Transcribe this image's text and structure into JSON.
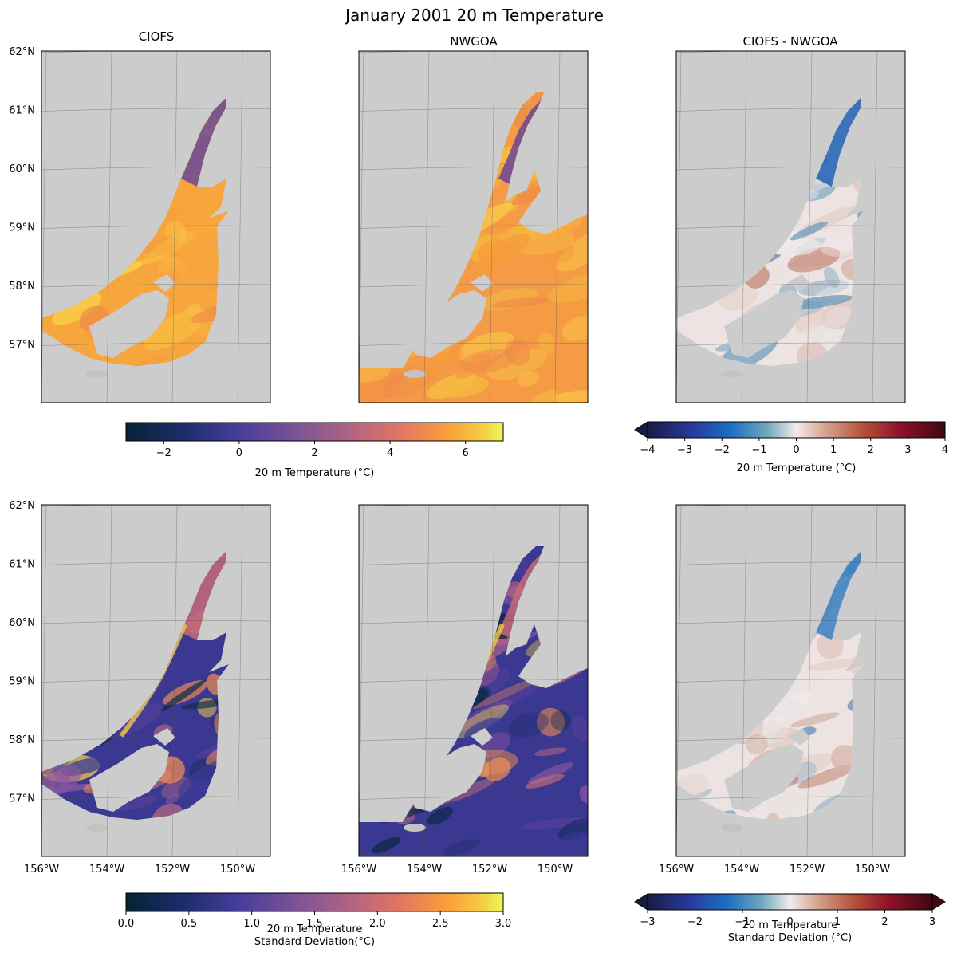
{
  "chart_data": {
    "type": "heatmap",
    "title": "January 2001 20 m Temperature",
    "column_titles": [
      "CIOFS",
      "NWGOA",
      "CIOFS - NWGOA"
    ],
    "lat_ticks": [
      62,
      61,
      60,
      59,
      58,
      57
    ],
    "lat_tick_labels": [
      "62°N",
      "61°N",
      "60°N",
      "59°N",
      "58°N",
      "57°N"
    ],
    "lon_ticks": [
      -156,
      -154,
      -152,
      -150
    ],
    "lon_tick_labels": [
      "156°W",
      "154°W",
      "152°W",
      "150°W"
    ],
    "lat_range": [
      56,
      62
    ],
    "lon_range": [
      -156,
      -149
    ],
    "land_color": "#cccccc",
    "panels": [
      {
        "row": 0,
        "col": 0,
        "model": "CIOFS",
        "field": "20 m Temperature (°C)",
        "colormap": "thermal",
        "domain": "fan"
      },
      {
        "row": 0,
        "col": 1,
        "model": "NWGOA",
        "field": "20 m Temperature (°C)",
        "colormap": "thermal",
        "domain": "full"
      },
      {
        "row": 0,
        "col": 2,
        "model": "CIOFS - NWGOA",
        "field": "20 m Temperature (°C)",
        "colormap": "balance",
        "domain": "fan"
      },
      {
        "row": 1,
        "col": 0,
        "model": "CIOFS",
        "field": "20 m Temperature Standard Deviation (°C)",
        "colormap": "thermal",
        "domain": "fan"
      },
      {
        "row": 1,
        "col": 1,
        "model": "NWGOA",
        "field": "20 m Temperature Standard Deviation (°C)",
        "colormap": "thermal",
        "domain": "full"
      },
      {
        "row": 1,
        "col": 2,
        "model": "CIOFS - NWGOA",
        "field": "20 m Temperature Standard Deviation (°C)",
        "colormap": "balance",
        "domain": "fan"
      }
    ],
    "colorbars": [
      {
        "id": "temp",
        "label": "20 m Temperature (°C)",
        "vmin": -3,
        "vmax": 7,
        "ticks": [
          -2,
          0,
          2,
          4,
          6
        ],
        "tick_labels": [
          "−2",
          "0",
          "2",
          "4",
          "6"
        ],
        "extend": "neither",
        "colormap": "thermal"
      },
      {
        "id": "temp-diff",
        "label": "20 m Temperature (°C)",
        "vmin": -4,
        "vmax": 4,
        "ticks": [
          -4,
          -3,
          -2,
          -1,
          0,
          1,
          2,
          3,
          4
        ],
        "tick_labels": [
          "−4",
          "−3",
          "−2",
          "−1",
          "0",
          "1",
          "2",
          "3",
          "4"
        ],
        "extend": "min",
        "colormap": "balance"
      },
      {
        "id": "std",
        "label": [
          "20 m Temperature",
          "Standard Deviation(°C)"
        ],
        "vmin": 0,
        "vmax": 3,
        "ticks": [
          0,
          0.5,
          1,
          1.5,
          2,
          2.5,
          3
        ],
        "tick_labels": [
          "0.0",
          "0.5",
          "1.0",
          "1.5",
          "2.0",
          "2.5",
          "3.0"
        ],
        "extend": "neither",
        "colormap": "thermal"
      },
      {
        "id": "std-diff",
        "label": [
          "20 m Temperature",
          "Standard Deviation (°C)"
        ],
        "vmin": -3,
        "vmax": 3,
        "ticks": [
          -3,
          -2,
          -1,
          0,
          1,
          2,
          3
        ],
        "tick_labels": [
          "−3",
          "−2",
          "−1",
          "0",
          "1",
          "2",
          "3"
        ],
        "extend": "both",
        "colormap": "balance"
      }
    ]
  }
}
